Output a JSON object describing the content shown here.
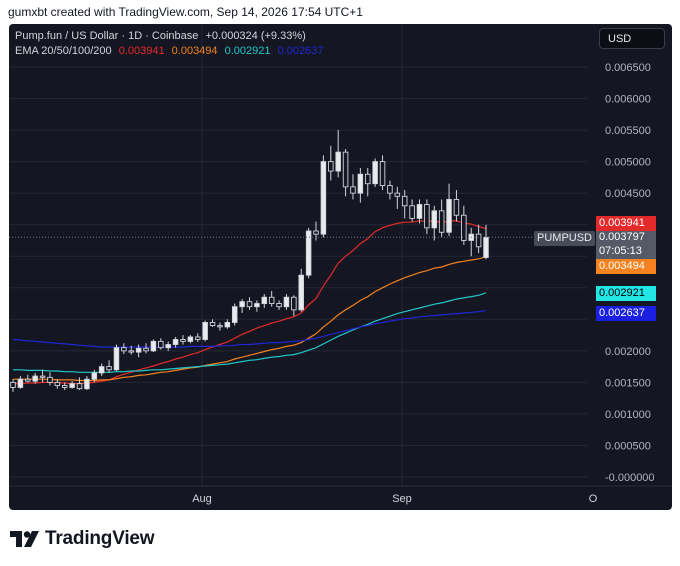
{
  "header": {
    "caption": "gumxbt created with TradingView.com, Sep 14, 2026 17:54 UTC+1"
  },
  "legend": {
    "symbol_line": "Pump.fun / US Dollar · 1D · Coinbase",
    "change": "+0.000324 (+9.33%)",
    "ema_label": "EMA 20/50/100/200",
    "ema_values": [
      "0.003941",
      "0.003494",
      "0.002921",
      "0.002637"
    ]
  },
  "toolbar": {
    "currency": "USD"
  },
  "price_tags": {
    "symbol": "PUMPUSD",
    "last_price": "0.003797",
    "countdown": "07:05:13",
    "ema20": "0.003941",
    "ema50": "0.003494",
    "ema100": "0.002921",
    "ema200": "0.002637"
  },
  "brand": {
    "name": "TradingView"
  },
  "colors": {
    "background": "#141722",
    "up": "#d1d4dc",
    "down": "#d1d4dc",
    "ema20": "#e32a2a",
    "ema50": "#f5821f",
    "ema100": "#22c7c7",
    "ema200": "#2124d6"
  },
  "chart_data": {
    "type": "candlestick",
    "title": "Pump.fun / US Dollar · 1D · Coinbase",
    "xlabel": "",
    "ylabel": "",
    "y_ticks": [
      "-0.000000",
      "0.000500",
      "0.001000",
      "0.001500",
      "0.002000",
      "0.002500",
      "0.003000",
      "0.003500",
      "0.004000",
      "0.004500",
      "0.005000",
      "0.005500",
      "0.006000",
      "0.006500"
    ],
    "y_labels_shown": [
      "0.006500",
      "0.006000",
      "0.005500",
      "0.005000",
      "0.004500",
      "0.002000",
      "0.001500",
      "0.001000",
      "0.000500",
      "-0.000000"
    ],
    "ylim": [
      -0.0002,
      0.0069
    ],
    "x_ticks": [
      "Aug",
      "Sep",
      "O"
    ],
    "grid": true,
    "candles": [
      {
        "o": 0.0015,
        "h": 0.00155,
        "l": 0.00135,
        "c": 0.00142
      },
      {
        "o": 0.00142,
        "h": 0.0016,
        "l": 0.0014,
        "c": 0.00155
      },
      {
        "o": 0.00155,
        "h": 0.00162,
        "l": 0.0015,
        "c": 0.00152
      },
      {
        "o": 0.00152,
        "h": 0.00165,
        "l": 0.00148,
        "c": 0.0016
      },
      {
        "o": 0.0016,
        "h": 0.0017,
        "l": 0.0015,
        "c": 0.00158
      },
      {
        "o": 0.00158,
        "h": 0.00166,
        "l": 0.00145,
        "c": 0.0015
      },
      {
        "o": 0.0015,
        "h": 0.00155,
        "l": 0.0014,
        "c": 0.00145
      },
      {
        "o": 0.00145,
        "h": 0.0015,
        "l": 0.00138,
        "c": 0.00142
      },
      {
        "o": 0.00142,
        "h": 0.00152,
        "l": 0.0014,
        "c": 0.00148
      },
      {
        "o": 0.00148,
        "h": 0.00158,
        "l": 0.00138,
        "c": 0.0014
      },
      {
        "o": 0.0014,
        "h": 0.0016,
        "l": 0.00138,
        "c": 0.00155
      },
      {
        "o": 0.00155,
        "h": 0.0017,
        "l": 0.0015,
        "c": 0.00165
      },
      {
        "o": 0.00165,
        "h": 0.0018,
        "l": 0.0016,
        "c": 0.00175
      },
      {
        "o": 0.00175,
        "h": 0.00185,
        "l": 0.00165,
        "c": 0.0017
      },
      {
        "o": 0.0017,
        "h": 0.0021,
        "l": 0.00168,
        "c": 0.00205
      },
      {
        "o": 0.00205,
        "h": 0.00212,
        "l": 0.00195,
        "c": 0.002
      },
      {
        "o": 0.002,
        "h": 0.00208,
        "l": 0.00194,
        "c": 0.00198
      },
      {
        "o": 0.00198,
        "h": 0.0021,
        "l": 0.0019,
        "c": 0.00204
      },
      {
        "o": 0.00204,
        "h": 0.00212,
        "l": 0.00196,
        "c": 0.002
      },
      {
        "o": 0.002,
        "h": 0.00218,
        "l": 0.00198,
        "c": 0.00215
      },
      {
        "o": 0.00215,
        "h": 0.0022,
        "l": 0.00202,
        "c": 0.00205
      },
      {
        "o": 0.00205,
        "h": 0.00215,
        "l": 0.002,
        "c": 0.0021
      },
      {
        "o": 0.0021,
        "h": 0.00222,
        "l": 0.00205,
        "c": 0.00218
      },
      {
        "o": 0.00218,
        "h": 0.00225,
        "l": 0.0021,
        "c": 0.00215
      },
      {
        "o": 0.00215,
        "h": 0.00225,
        "l": 0.00212,
        "c": 0.00222
      },
      {
        "o": 0.00222,
        "h": 0.00228,
        "l": 0.00214,
        "c": 0.00218
      },
      {
        "o": 0.00218,
        "h": 0.00248,
        "l": 0.00215,
        "c": 0.00245
      },
      {
        "o": 0.00245,
        "h": 0.0025,
        "l": 0.00238,
        "c": 0.0024
      },
      {
        "o": 0.0024,
        "h": 0.00245,
        "l": 0.00232,
        "c": 0.00238
      },
      {
        "o": 0.00238,
        "h": 0.0025,
        "l": 0.00235,
        "c": 0.00245
      },
      {
        "o": 0.00245,
        "h": 0.00275,
        "l": 0.0024,
        "c": 0.0027
      },
      {
        "o": 0.0027,
        "h": 0.00282,
        "l": 0.0026,
        "c": 0.00278
      },
      {
        "o": 0.00278,
        "h": 0.00285,
        "l": 0.00265,
        "c": 0.0027
      },
      {
        "o": 0.0027,
        "h": 0.0028,
        "l": 0.00262,
        "c": 0.00275
      },
      {
        "o": 0.00275,
        "h": 0.0029,
        "l": 0.00268,
        "c": 0.00285
      },
      {
        "o": 0.00285,
        "h": 0.00295,
        "l": 0.0027,
        "c": 0.00275
      },
      {
        "o": 0.00275,
        "h": 0.0028,
        "l": 0.00265,
        "c": 0.0027
      },
      {
        "o": 0.0027,
        "h": 0.0029,
        "l": 0.00265,
        "c": 0.00285
      },
      {
        "o": 0.00285,
        "h": 0.00288,
        "l": 0.00255,
        "c": 0.00265
      },
      {
        "o": 0.00265,
        "h": 0.0033,
        "l": 0.00262,
        "c": 0.0032
      },
      {
        "o": 0.0032,
        "h": 0.00395,
        "l": 0.00315,
        "c": 0.0039
      },
      {
        "o": 0.0039,
        "h": 0.00405,
        "l": 0.00375,
        "c": 0.00385
      },
      {
        "o": 0.00385,
        "h": 0.0051,
        "l": 0.0038,
        "c": 0.005
      },
      {
        "o": 0.005,
        "h": 0.00525,
        "l": 0.0047,
        "c": 0.00485
      },
      {
        "o": 0.00485,
        "h": 0.0055,
        "l": 0.00475,
        "c": 0.00515
      },
      {
        "o": 0.00515,
        "h": 0.0052,
        "l": 0.00445,
        "c": 0.0046
      },
      {
        "o": 0.0046,
        "h": 0.0048,
        "l": 0.0044,
        "c": 0.0045
      },
      {
        "o": 0.0045,
        "h": 0.0049,
        "l": 0.00435,
        "c": 0.0048
      },
      {
        "o": 0.0048,
        "h": 0.0049,
        "l": 0.00445,
        "c": 0.00465
      },
      {
        "o": 0.00465,
        "h": 0.00505,
        "l": 0.0046,
        "c": 0.005
      },
      {
        "o": 0.005,
        "h": 0.0051,
        "l": 0.00455,
        "c": 0.00462
      },
      {
        "o": 0.00462,
        "h": 0.0047,
        "l": 0.0044,
        "c": 0.0045
      },
      {
        "o": 0.0045,
        "h": 0.0046,
        "l": 0.00425,
        "c": 0.00445
      },
      {
        "o": 0.00445,
        "h": 0.00455,
        "l": 0.0041,
        "c": 0.0043
      },
      {
        "o": 0.0043,
        "h": 0.0044,
        "l": 0.00405,
        "c": 0.0041
      },
      {
        "o": 0.0041,
        "h": 0.0044,
        "l": 0.00402,
        "c": 0.00432
      },
      {
        "o": 0.00432,
        "h": 0.0044,
        "l": 0.00385,
        "c": 0.00395
      },
      {
        "o": 0.00395,
        "h": 0.0043,
        "l": 0.00375,
        "c": 0.00422
      },
      {
        "o": 0.00422,
        "h": 0.0044,
        "l": 0.0038,
        "c": 0.00388
      },
      {
        "o": 0.00388,
        "h": 0.00465,
        "l": 0.00382,
        "c": 0.0044
      },
      {
        "o": 0.0044,
        "h": 0.00455,
        "l": 0.00405,
        "c": 0.00415
      },
      {
        "o": 0.00415,
        "h": 0.0043,
        "l": 0.00368,
        "c": 0.00375
      },
      {
        "o": 0.00375,
        "h": 0.00395,
        "l": 0.0035,
        "c": 0.00385
      },
      {
        "o": 0.00385,
        "h": 0.004,
        "l": 0.00355,
        "c": 0.00365
      },
      {
        "o": 0.00348,
        "h": 0.004,
        "l": 0.00345,
        "c": 0.0038
      }
    ],
    "series": [
      {
        "name": "EMA 20",
        "values": [
          0.00148,
          0.00148,
          0.00149,
          0.00149,
          0.0015,
          0.0015,
          0.00149,
          0.00149,
          0.00148,
          0.00148,
          0.00149,
          0.0015,
          0.00152,
          0.00154,
          0.00159,
          0.00163,
          0.00166,
          0.0017,
          0.00173,
          0.00176,
          0.0018,
          0.00183,
          0.00187,
          0.0019,
          0.00194,
          0.00197,
          0.00202,
          0.00206,
          0.0021,
          0.00214,
          0.0022,
          0.00226,
          0.00231,
          0.00236,
          0.0024,
          0.00244,
          0.00247,
          0.00251,
          0.00254,
          0.0026,
          0.00273,
          0.00283,
          0.00303,
          0.0032,
          0.00339,
          0.0035,
          0.00359,
          0.0037,
          0.00378,
          0.00389,
          0.00395,
          0.00399,
          0.00402,
          0.00404,
          0.00404,
          0.00406,
          0.00405,
          0.00406,
          0.00403,
          0.00406,
          0.00406,
          0.00403,
          0.00401,
          0.00397,
          0.00394
        ]
      },
      {
        "name": "EMA 50",
        "values": [
          0.00155,
          0.00155,
          0.00155,
          0.00155,
          0.00155,
          0.00155,
          0.00154,
          0.00154,
          0.00154,
          0.00153,
          0.00153,
          0.00153,
          0.00154,
          0.00154,
          0.00156,
          0.00158,
          0.00159,
          0.00161,
          0.00162,
          0.00164,
          0.00166,
          0.00167,
          0.00169,
          0.00171,
          0.00173,
          0.00174,
          0.00177,
          0.00179,
          0.00181,
          0.00183,
          0.00187,
          0.0019,
          0.00193,
          0.00196,
          0.00199,
          0.00202,
          0.00204,
          0.00207,
          0.00209,
          0.00213,
          0.0022,
          0.00227,
          0.00238,
          0.00247,
          0.00257,
          0.00265,
          0.00272,
          0.0028,
          0.00286,
          0.00294,
          0.003,
          0.00306,
          0.00311,
          0.00316,
          0.0032,
          0.00324,
          0.00327,
          0.00331,
          0.00333,
          0.00337,
          0.0034,
          0.00342,
          0.00344,
          0.00346,
          0.00349
        ]
      },
      {
        "name": "EMA 100",
        "values": [
          0.0017,
          0.0017,
          0.00169,
          0.00169,
          0.00169,
          0.00168,
          0.00168,
          0.00167,
          0.00167,
          0.00166,
          0.00166,
          0.00166,
          0.00166,
          0.00166,
          0.00167,
          0.00167,
          0.00168,
          0.00168,
          0.00169,
          0.0017,
          0.0017,
          0.00171,
          0.00172,
          0.00173,
          0.00174,
          0.00175,
          0.00176,
          0.00177,
          0.00178,
          0.00179,
          0.00181,
          0.00183,
          0.00185,
          0.00186,
          0.00188,
          0.0019,
          0.00191,
          0.00193,
          0.00194,
          0.00197,
          0.00201,
          0.00205,
          0.00211,
          0.00217,
          0.00223,
          0.00228,
          0.00233,
          0.00238,
          0.00242,
          0.00247,
          0.00251,
          0.00255,
          0.00259,
          0.00262,
          0.00265,
          0.00268,
          0.00271,
          0.00274,
          0.00276,
          0.00279,
          0.00282,
          0.00284,
          0.00286,
          0.00288,
          0.00292
        ]
      },
      {
        "name": "EMA 200",
        "values": [
          0.00218,
          0.00217,
          0.00216,
          0.00215,
          0.00214,
          0.00213,
          0.00212,
          0.00211,
          0.0021,
          0.00209,
          0.00208,
          0.00207,
          0.00206,
          0.00206,
          0.00206,
          0.00206,
          0.00206,
          0.00206,
          0.00206,
          0.00206,
          0.00206,
          0.00206,
          0.00206,
          0.00206,
          0.00207,
          0.00207,
          0.00207,
          0.00207,
          0.00208,
          0.00208,
          0.00209,
          0.0021,
          0.0021,
          0.00211,
          0.00212,
          0.00213,
          0.00213,
          0.00214,
          0.00215,
          0.00216,
          0.00218,
          0.0022,
          0.00223,
          0.00226,
          0.00229,
          0.00232,
          0.00235,
          0.00238,
          0.0024,
          0.00243,
          0.00245,
          0.00247,
          0.00249,
          0.00251,
          0.00252,
          0.00254,
          0.00255,
          0.00256,
          0.00257,
          0.00258,
          0.00259,
          0.0026,
          0.00261,
          0.00262,
          0.00264
        ]
      }
    ]
  }
}
